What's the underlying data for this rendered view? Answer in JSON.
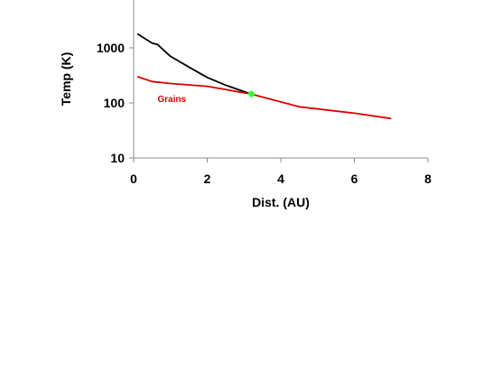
{
  "chart_data": {
    "type": "line",
    "xlabel": "Dist. (AU)",
    "ylabel": "Temp (K)",
    "x_ticks": [
      0,
      2,
      4,
      6,
      8
    ],
    "x_tick_labels": [
      "0",
      "2",
      "4",
      "6",
      "8"
    ],
    "xlim": [
      0,
      8
    ],
    "y_ticks": [
      10,
      100,
      1000
    ],
    "y_tick_labels": [
      "10",
      "100",
      "1000"
    ],
    "ylim": [
      10,
      10000
    ],
    "y_scale": "log",
    "grid": false,
    "legend": "none",
    "series": [
      {
        "color": "#000000",
        "points": [
          [
            0.1,
            1800
          ],
          [
            0.5,
            1220
          ],
          [
            0.65,
            1150
          ],
          [
            1.0,
            700
          ],
          [
            1.5,
            450
          ],
          [
            2.0,
            290
          ],
          [
            2.5,
            210
          ],
          [
            3.0,
            160
          ],
          [
            3.2,
            145
          ]
        ]
      },
      {
        "name": "Grains",
        "color": "#dd0000",
        "points": [
          [
            0.1,
            300
          ],
          [
            0.5,
            245
          ],
          [
            1.0,
            225
          ],
          [
            2.0,
            200
          ],
          [
            3.2,
            145
          ],
          [
            4.5,
            85
          ],
          [
            6.0,
            65
          ],
          [
            7.0,
            52
          ]
        ]
      }
    ],
    "annotations": [
      {
        "text": "Grains",
        "x": 0.65,
        "y": 120,
        "color": "#dd0000"
      }
    ],
    "marker": {
      "x": 3.2,
      "y": 145,
      "color": "#33ff33"
    }
  }
}
